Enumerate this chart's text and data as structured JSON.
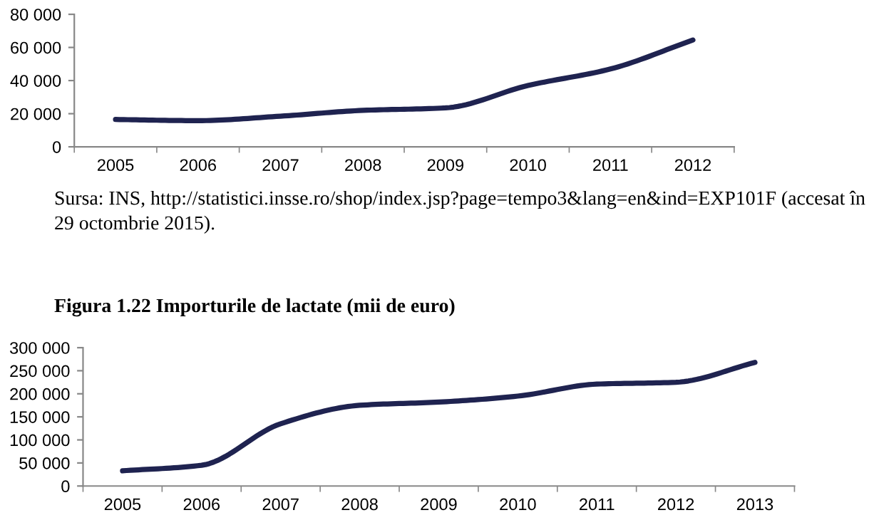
{
  "chart_data": [
    {
      "type": "line",
      "categories": [
        "2005",
        "2006",
        "2007",
        "2008",
        "2009",
        "2010",
        "2011",
        "2012"
      ],
      "series": [
        {
          "color": "#1f2350",
          "values": [
            16500,
            15800,
            18500,
            22000,
            23500,
            37000,
            47000,
            64500
          ]
        }
      ],
      "ylim": [
        0,
        80000
      ],
      "yticks": [
        0,
        {
          "value": 20000,
          "label": "20 000"
        },
        {
          "value": 40000,
          "label": "40 000"
        },
        {
          "value": 60000,
          "label": "60 000"
        },
        {
          "value": 80000,
          "label": "80 000"
        }
      ],
      "grid": false,
      "legend": false,
      "marker": "none",
      "line_style": "solid",
      "annotations": [
        "Sursa: INS, http://statistici.insse.ro/shop/index.jsp?page=tempo3&lang=en&ind=EXP101F (accesat în 29 octombrie 2015)."
      ]
    },
    {
      "type": "line",
      "title": "Figura 1.22 Importurile de lactate (mii de euro)",
      "categories": [
        "2005",
        "2006",
        "2007",
        "2008",
        "2009",
        "2010",
        "2011",
        "2012",
        "2013"
      ],
      "series": [
        {
          "color": "#1f2350",
          "values": [
            33000,
            45000,
            135000,
            175000,
            182000,
            195000,
            221000,
            225000,
            268000
          ]
        }
      ],
      "ylim": [
        0,
        300000
      ],
      "yticks": [
        0,
        {
          "value": 50000,
          "label": "50 000"
        },
        {
          "value": 100000,
          "label": "100 000"
        },
        {
          "value": 150000,
          "label": "150 000"
        },
        {
          "value": 200000,
          "label": "200 000"
        },
        {
          "value": 250000,
          "label": "250 000"
        },
        {
          "value": 300000,
          "label": "300 000"
        }
      ],
      "grid": false,
      "legend": false,
      "marker": "none",
      "line_style": "solid"
    }
  ]
}
